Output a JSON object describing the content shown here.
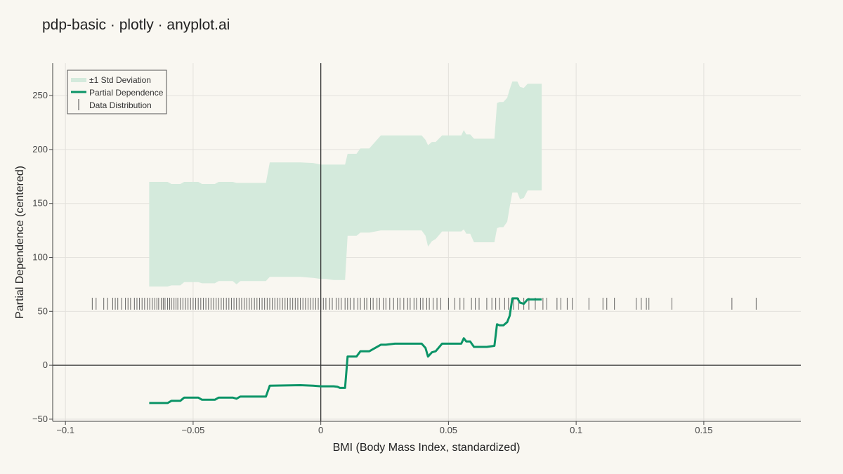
{
  "title": "pdp-basic · plotly · anyplot.ai",
  "colors": {
    "line": "#0b9467",
    "band": "#d4eadc",
    "rug": "#333333",
    "background": "#f9f7f1",
    "grid": "#e3e1dc"
  },
  "chart_data": {
    "type": "line",
    "xlabel": "BMI (Body Mass Index, standardized)",
    "ylabel": "Partial Dependence (centered)",
    "xlim": [
      -0.105,
      0.188
    ],
    "ylim": [
      -52,
      280
    ],
    "x_ticks": [
      -0.1,
      -0.05,
      0,
      0.05,
      0.1,
      0.15
    ],
    "x_tick_labels": [
      "−0.1",
      "−0.05",
      "0",
      "0.05",
      "0.1",
      "0.15"
    ],
    "y_ticks": [
      -50,
      0,
      50,
      100,
      150,
      200,
      250
    ],
    "y_tick_labels": [
      "−50",
      "0",
      "50",
      "100",
      "150",
      "200",
      "250"
    ],
    "grid": true,
    "legend_position": "top-left",
    "legend": [
      {
        "name": "±1 Std Deviation",
        "kind": "band"
      },
      {
        "name": "Partial Dependence",
        "kind": "line"
      },
      {
        "name": "Data Distribution",
        "kind": "rug"
      }
    ],
    "series": [
      {
        "name": "Partial Dependence",
        "x": [
          -0.0672,
          -0.06,
          -0.0585,
          -0.055,
          -0.0535,
          -0.048,
          -0.0465,
          -0.0415,
          -0.04,
          -0.0345,
          -0.033,
          -0.0315,
          -0.03,
          -0.0215,
          -0.02,
          -0.008,
          -0.003,
          0.0,
          0.002,
          0.005,
          0.0065,
          0.0075,
          0.0095,
          0.0105,
          0.014,
          0.0155,
          0.017,
          0.019,
          0.0235,
          0.0255,
          0.029,
          0.0305,
          0.0395,
          0.041,
          0.042,
          0.0435,
          0.045,
          0.0475,
          0.0495,
          0.055,
          0.056,
          0.057,
          0.0585,
          0.06,
          0.062,
          0.065,
          0.068,
          0.069,
          0.07,
          0.0715,
          0.073,
          0.074,
          0.075,
          0.077,
          0.078,
          0.0795,
          0.081,
          0.083,
          0.0845,
          0.0865
        ],
        "values": [
          -35,
          -35,
          -33,
          -33,
          -30,
          -30,
          -32,
          -32,
          -30,
          -30,
          -31,
          -29,
          -29,
          -29,
          -19,
          -18.5,
          -19,
          -19.5,
          -19.5,
          -19.5,
          -20,
          -21,
          -21,
          8,
          8,
          13,
          13,
          13,
          19,
          19,
          20,
          20,
          20,
          16,
          8,
          12,
          13,
          20,
          20,
          20,
          25,
          22,
          22,
          17,
          17,
          17,
          18,
          38,
          37,
          37,
          40,
          46,
          62,
          62,
          58,
          57,
          61,
          61,
          61,
          61
        ]
      },
      {
        "name": "±1 Std Deviation",
        "x": [
          -0.0672,
          -0.06,
          -0.0585,
          -0.055,
          -0.0535,
          -0.048,
          -0.0465,
          -0.0415,
          -0.04,
          -0.0345,
          -0.033,
          -0.0315,
          -0.03,
          -0.0215,
          -0.02,
          -0.008,
          -0.003,
          0.0,
          0.002,
          0.005,
          0.0065,
          0.0075,
          0.0095,
          0.0105,
          0.014,
          0.0155,
          0.017,
          0.019,
          0.0235,
          0.0255,
          0.029,
          0.0305,
          0.0395,
          0.041,
          0.042,
          0.0435,
          0.045,
          0.0475,
          0.0495,
          0.055,
          0.056,
          0.057,
          0.0585,
          0.06,
          0.062,
          0.065,
          0.068,
          0.069,
          0.07,
          0.0715,
          0.073,
          0.074,
          0.075,
          0.077,
          0.078,
          0.0795,
          0.081,
          0.083,
          0.0845,
          0.0865
        ],
        "upper": [
          170,
          170,
          168,
          168,
          170,
          170,
          168,
          168,
          170,
          170,
          169,
          169,
          169,
          169,
          188,
          188,
          187.5,
          186,
          186,
          186,
          186,
          186,
          186,
          196,
          196,
          201,
          201,
          201,
          213,
          213,
          213,
          213,
          213,
          209,
          204,
          207,
          207,
          213,
          213,
          213,
          218,
          214,
          214,
          210,
          210,
          210,
          210,
          243,
          244,
          244,
          248,
          256,
          263,
          263,
          258,
          257,
          261,
          261,
          261,
          261
        ],
        "lower": [
          73,
          73,
          74,
          74,
          77,
          77,
          76,
          76,
          78,
          78,
          75,
          78,
          78,
          78,
          82,
          82,
          81,
          80,
          80,
          79,
          79,
          79,
          79,
          120,
          120,
          123,
          123,
          123,
          125,
          125,
          125,
          125,
          125,
          120,
          110,
          115,
          117,
          124,
          124,
          124,
          126,
          122,
          122,
          114,
          114,
          114,
          114,
          127,
          128,
          128,
          133,
          147,
          160,
          160,
          154,
          155,
          162,
          162,
          162,
          162
        ]
      }
    ],
    "rug_x": [
      -0.0895,
      -0.088,
      -0.085,
      -0.0835,
      -0.0815,
      -0.0805,
      -0.0795,
      -0.078,
      -0.0765,
      -0.0755,
      -0.0745,
      -0.073,
      -0.072,
      -0.071,
      -0.07,
      -0.069,
      -0.068,
      -0.067,
      -0.066,
      -0.065,
      -0.0642,
      -0.0635,
      -0.0625,
      -0.0617,
      -0.061,
      -0.06,
      -0.0592,
      -0.0585,
      -0.0575,
      -0.0567,
      -0.056,
      -0.055,
      -0.054,
      -0.053,
      -0.052,
      -0.051,
      -0.05,
      -0.049,
      -0.048,
      -0.047,
      -0.046,
      -0.045,
      -0.044,
      -0.043,
      -0.042,
      -0.041,
      -0.04,
      -0.039,
      -0.038,
      -0.037,
      -0.036,
      -0.035,
      -0.034,
      -0.033,
      -0.032,
      -0.031,
      -0.03,
      -0.029,
      -0.028,
      -0.027,
      -0.026,
      -0.025,
      -0.024,
      -0.023,
      -0.022,
      -0.021,
      -0.02,
      -0.019,
      -0.018,
      -0.017,
      -0.016,
      -0.015,
      -0.014,
      -0.013,
      -0.012,
      -0.011,
      -0.01,
      -0.009,
      -0.008,
      -0.007,
      -0.006,
      -0.005,
      -0.004,
      -0.003,
      -0.002,
      -0.001,
      0.0,
      0.001,
      0.002,
      0.0035,
      0.0045,
      0.006,
      0.007,
      0.008,
      0.0095,
      0.0105,
      0.0115,
      0.013,
      0.0145,
      0.0155,
      0.017,
      0.018,
      0.0195,
      0.0205,
      0.022,
      0.023,
      0.0245,
      0.0255,
      0.027,
      0.0285,
      0.03,
      0.031,
      0.0325,
      0.034,
      0.035,
      0.0365,
      0.0375,
      0.039,
      0.04,
      0.0415,
      0.0425,
      0.044,
      0.0455,
      0.047,
      0.05,
      0.0525,
      0.0545,
      0.056,
      0.059,
      0.0605,
      0.062,
      0.065,
      0.067,
      0.0685,
      0.07,
      0.072,
      0.0735,
      0.0755,
      0.0775,
      0.0795,
      0.0815,
      0.084,
      0.087,
      0.0885,
      0.0925,
      0.094,
      0.0965,
      0.0985,
      0.105,
      0.1105,
      0.112,
      0.115,
      0.1235,
      0.1255,
      0.1275,
      0.1285,
      0.1375,
      0.161,
      0.1705
    ]
  }
}
